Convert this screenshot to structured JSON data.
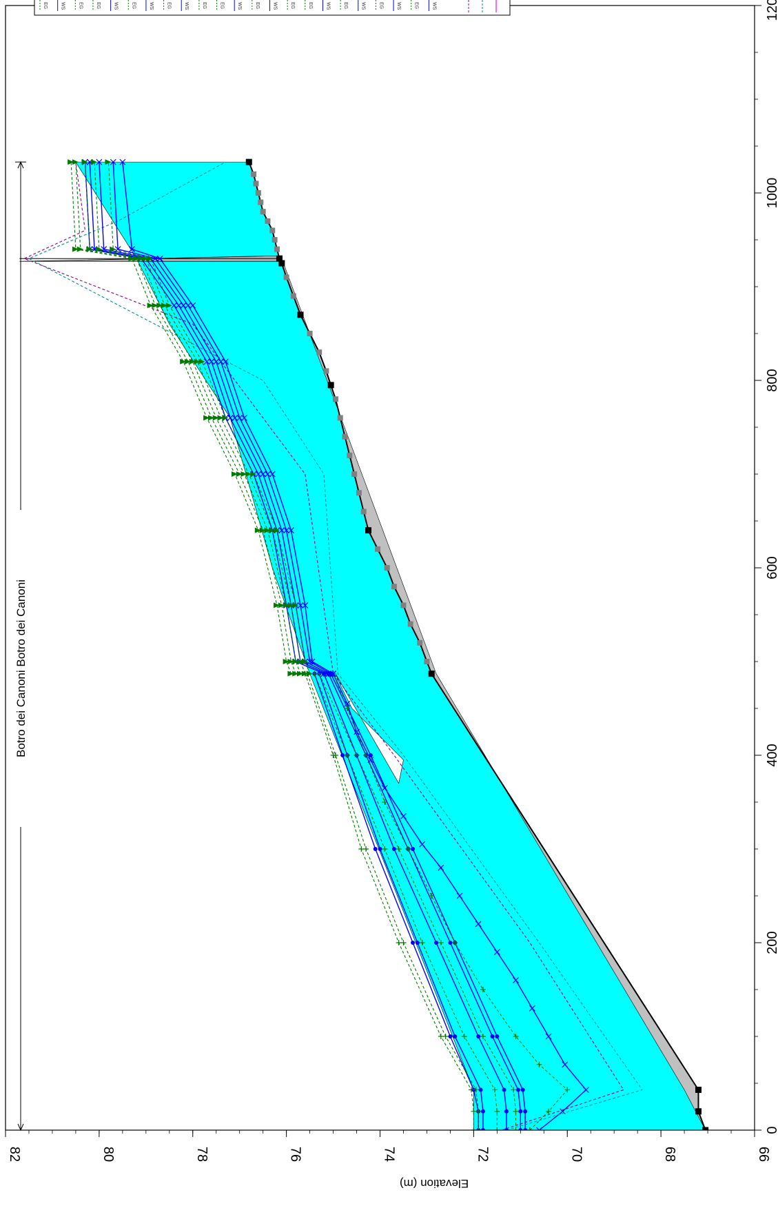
{
  "chart_data": {
    "type": "line",
    "rotation_deg": 90,
    "ylabel": "Elevation (m)",
    "reach_label": "Botro dei Canoni Botro dei Canoni",
    "xlim": [
      0,
      1200
    ],
    "ylim": [
      66,
      82
    ],
    "x_ticks": [
      "0",
      "200",
      "400",
      "600",
      "800",
      "1000",
      "1200"
    ],
    "y_ticks": [
      "66",
      "68",
      "70",
      "72",
      "74",
      "76",
      "78",
      "80",
      "82"
    ],
    "grid": false,
    "legend_placement": "top-right",
    "legend_entries": [
      "EG",
      "WS",
      "EG",
      "EG",
      "WS",
      "EG",
      "WS",
      "EG",
      "WS",
      "EG",
      "EG",
      "WS",
      "EG",
      "WS",
      "EG",
      "EG",
      "WS",
      "EG",
      "WS",
      "EG",
      "WS",
      "EG",
      "WS"
    ],
    "colors": {
      "water_fill": "#00ffff",
      "channel_fill": "#c0c0c0",
      "ground": "#000000",
      "ws_lines": "#0000ff",
      "eg_lines": "#007a00",
      "extra_1": "#8b008b",
      "extra_2": "#008b8b",
      "marker_dark": "#000000",
      "marker_grey": "#808080"
    },
    "ground": {
      "x": [
        0,
        20,
        43,
        487,
        500,
        520,
        540,
        560,
        580,
        600,
        620,
        640,
        660,
        680,
        700,
        720,
        740,
        760,
        780,
        795,
        810,
        830,
        850,
        870,
        890,
        910,
        925,
        930,
        940,
        950,
        960,
        970,
        980,
        990,
        1000,
        1010,
        1020,
        1033
      ],
      "y": [
        67.05,
        67.2,
        67.2,
        72.9,
        73.0,
        73.15,
        73.35,
        73.5,
        73.7,
        73.85,
        74.05,
        74.25,
        74.35,
        74.45,
        74.55,
        74.65,
        74.75,
        74.85,
        74.95,
        75.05,
        75.15,
        75.3,
        75.5,
        75.7,
        75.85,
        76.0,
        76.1,
        76.15,
        76.2,
        76.25,
        76.3,
        76.4,
        76.5,
        76.55,
        76.6,
        76.65,
        76.7,
        76.8
      ]
    },
    "channel_lower": {
      "x": [
        0,
        43,
        487,
        930
      ],
      "y": [
        67.05,
        67.5,
        72.8,
        76.1
      ]
    },
    "water_surface_max": {
      "x": [
        0,
        43,
        487,
        600,
        760,
        860,
        930,
        1033
      ],
      "y": [
        72.0,
        72.0,
        75.5,
        76.3,
        77.2,
        78.5,
        79.2,
        80.5
      ]
    },
    "white_pocket": {
      "x": [
        370,
        395,
        450,
        470,
        487
      ],
      "y": [
        73.6,
        73.5,
        74.6,
        74.8,
        74.95
      ]
    },
    "bridge": {
      "x": 930,
      "y_top": 81.7,
      "y_bottom": 76.1
    },
    "series": [
      {
        "name": "WS",
        "kind": "ws",
        "x": [
          0,
          20,
          43,
          100,
          200,
          300,
          400,
          487
        ],
        "y": [
          71.9,
          71.9,
          72.0,
          72.5,
          73.3,
          74.1,
          74.8,
          75.4
        ],
        "marker": "circle"
      },
      {
        "name": "WS",
        "kind": "ws",
        "x": [
          0,
          20,
          43,
          100,
          200,
          300,
          400,
          487
        ],
        "y": [
          71.8,
          71.8,
          71.85,
          72.4,
          73.2,
          74.0,
          74.7,
          75.3
        ],
        "marker": "circle"
      },
      {
        "name": "WS",
        "kind": "ws",
        "x": [
          0,
          20,
          43,
          100,
          200,
          300,
          400,
          487
        ],
        "y": [
          71.3,
          71.3,
          71.35,
          71.9,
          72.8,
          73.7,
          74.5,
          75.2
        ],
        "marker": "circle"
      },
      {
        "name": "WS",
        "kind": "ws",
        "x": [
          0,
          20,
          43,
          100,
          200,
          300,
          400,
          487
        ],
        "y": [
          71.0,
          71.0,
          71.05,
          71.6,
          72.5,
          73.4,
          74.3,
          75.1
        ],
        "marker": "circle"
      },
      {
        "name": "WS",
        "kind": "ws",
        "x": [
          0,
          20,
          43,
          100,
          200,
          300,
          400,
          487
        ],
        "y": [
          70.9,
          70.9,
          70.95,
          71.5,
          72.4,
          73.3,
          74.2,
          75.05
        ],
        "marker": "circle"
      },
      {
        "name": "WS",
        "kind": "ws",
        "x": [
          0,
          20,
          43,
          70,
          100,
          130,
          160,
          190,
          220,
          250,
          280,
          305,
          335,
          365,
          395,
          425,
          455,
          487
        ],
        "y": [
          70.6,
          70.1,
          69.6,
          70.05,
          70.4,
          70.75,
          71.1,
          71.5,
          71.9,
          72.3,
          72.7,
          73.1,
          73.5,
          73.9,
          74.2,
          74.5,
          74.7,
          75.0
        ],
        "marker": "x"
      },
      {
        "name": "EG",
        "kind": "eg",
        "x": [
          0,
          20,
          43,
          100,
          200,
          300,
          400,
          487
        ],
        "y": [
          72.0,
          72.0,
          72.05,
          72.7,
          73.6,
          74.4,
          75.0,
          75.6
        ],
        "marker": "plus"
      },
      {
        "name": "EG",
        "kind": "eg",
        "x": [
          0,
          20,
          43,
          100,
          200,
          300,
          400,
          487
        ],
        "y": [
          71.9,
          71.9,
          71.95,
          72.6,
          73.5,
          74.3,
          74.95,
          75.55
        ],
        "marker": "plus"
      },
      {
        "name": "EG",
        "kind": "eg",
        "x": [
          0,
          20,
          43,
          100,
          200,
          300,
          400,
          487
        ],
        "y": [
          71.5,
          71.5,
          71.55,
          72.2,
          73.1,
          73.9,
          74.7,
          75.4
        ],
        "marker": "plus"
      },
      {
        "name": "EG",
        "kind": "eg",
        "x": [
          0,
          20,
          43,
          100,
          200,
          300,
          400,
          487
        ],
        "y": [
          71.1,
          71.1,
          71.15,
          71.8,
          72.7,
          73.6,
          74.5,
          75.3
        ],
        "marker": "plus"
      },
      {
        "name": "EG",
        "kind": "eg",
        "x": [
          0,
          20,
          43,
          70,
          100,
          150,
          200,
          250,
          300,
          350,
          400,
          450,
          487
        ],
        "y": [
          70.8,
          70.4,
          70.0,
          70.6,
          71.1,
          71.8,
          72.4,
          72.9,
          73.4,
          73.9,
          74.3,
          74.7,
          75.0
        ],
        "marker": "plus"
      },
      {
        "name": "",
        "kind": "extra1",
        "x": [
          0,
          43,
          200,
          400,
          487,
          700,
          860,
          930,
          960,
          1033
        ],
        "y": [
          71.4,
          68.8,
          70.8,
          73.7,
          75.0,
          75.6,
          78.0,
          81.6,
          80.3,
          80.5
        ],
        "marker": "none"
      },
      {
        "name": "",
        "kind": "extra2",
        "x": [
          0,
          43,
          200,
          400,
          487,
          700,
          800,
          930,
          970,
          1033
        ],
        "y": [
          71.3,
          68.4,
          70.6,
          73.5,
          74.9,
          75.2,
          76.5,
          81.5,
          79.6,
          77.3
        ],
        "marker": "none"
      },
      {
        "name": "WS",
        "kind": "ws",
        "x": [
          487,
          500,
          560,
          640,
          700,
          760,
          820,
          880,
          930,
          940,
          1033
        ],
        "y": [
          75.2,
          75.8,
          76.0,
          76.3,
          76.7,
          77.3,
          77.7,
          78.4,
          79.1,
          80.2,
          80.3
        ],
        "marker": "x"
      },
      {
        "name": "WS",
        "kind": "ws",
        "x": [
          487,
          500,
          560,
          640,
          700,
          760,
          820,
          880,
          930,
          940,
          1033
        ],
        "y": [
          75.15,
          75.7,
          75.9,
          76.2,
          76.6,
          77.2,
          77.6,
          78.3,
          79.0,
          80.1,
          80.2
        ],
        "marker": "x"
      },
      {
        "name": "WS",
        "kind": "ws",
        "x": [
          487,
          500,
          560,
          640,
          700,
          760,
          820,
          880,
          930,
          940,
          1033
        ],
        "y": [
          75.1,
          75.6,
          75.8,
          76.1,
          76.5,
          77.1,
          77.5,
          78.2,
          78.9,
          79.9,
          80.0
        ],
        "marker": "x"
      },
      {
        "name": "WS",
        "kind": "ws",
        "x": [
          487,
          500,
          560,
          640,
          700,
          760,
          820,
          880,
          930,
          940,
          1033
        ],
        "y": [
          75.05,
          75.5,
          75.7,
          76.0,
          76.4,
          77.0,
          77.4,
          78.1,
          78.8,
          79.6,
          79.7
        ],
        "marker": "x"
      },
      {
        "name": "WS",
        "kind": "ws",
        "x": [
          487,
          500,
          560,
          640,
          700,
          760,
          820,
          880,
          930,
          940,
          1033
        ],
        "y": [
          75.0,
          75.45,
          75.6,
          75.9,
          76.3,
          76.9,
          77.3,
          78.0,
          78.7,
          79.3,
          79.5
        ],
        "marker": "x"
      },
      {
        "name": "EG",
        "kind": "eg",
        "x": [
          487,
          500,
          560,
          640,
          700,
          760,
          820,
          880,
          930,
          940,
          1033
        ],
        "y": [
          75.9,
          76.0,
          76.2,
          76.6,
          77.1,
          77.7,
          78.2,
          78.9,
          79.3,
          80.5,
          80.6
        ],
        "marker": "tri"
      },
      {
        "name": "EG",
        "kind": "eg",
        "x": [
          487,
          500,
          560,
          640,
          700,
          760,
          820,
          880,
          930,
          940,
          1033
        ],
        "y": [
          75.8,
          75.9,
          76.1,
          76.5,
          77.0,
          77.6,
          78.1,
          78.8,
          79.2,
          80.4,
          80.5
        ],
        "marker": "tri"
      },
      {
        "name": "EG",
        "kind": "eg",
        "x": [
          487,
          500,
          560,
          640,
          700,
          760,
          820,
          880,
          930,
          940,
          1033
        ],
        "y": [
          75.7,
          75.8,
          76.0,
          76.4,
          76.9,
          77.5,
          78.0,
          78.7,
          79.1,
          80.2,
          80.3
        ],
        "marker": "tri"
      },
      {
        "name": "EG",
        "kind": "eg",
        "x": [
          487,
          500,
          560,
          640,
          700,
          760,
          820,
          880,
          930,
          940,
          1033
        ],
        "y": [
          75.6,
          75.7,
          75.9,
          76.3,
          76.8,
          77.4,
          77.9,
          78.6,
          79.0,
          80.0,
          80.1
        ],
        "marker": "tri"
      },
      {
        "name": "EG",
        "kind": "eg",
        "x": [
          487,
          500,
          560,
          640,
          700,
          760,
          820,
          880,
          930,
          940,
          1033
        ],
        "y": [
          75.5,
          75.6,
          75.8,
          76.2,
          76.7,
          77.3,
          77.8,
          78.5,
          78.9,
          79.7,
          79.8
        ],
        "marker": "tri"
      }
    ]
  }
}
